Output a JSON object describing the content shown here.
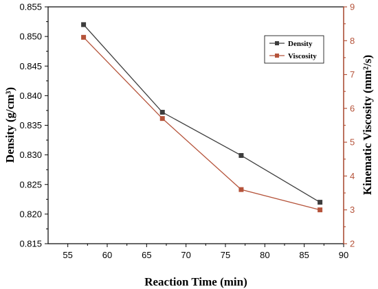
{
  "chart_data": {
    "type": "line",
    "xlabel": "Reaction Time (min)",
    "ylabel_left": "Density (g/cm³)",
    "ylabel_right": "Kinematic Viscosity (mm²/s)",
    "xlim": [
      52.5,
      90
    ],
    "x_ticks": [
      55,
      60,
      65,
      70,
      75,
      80,
      85,
      90
    ],
    "ylim_left": [
      0.815,
      0.855
    ],
    "y_ticks_left": [
      "0.815",
      "0.820",
      "0.825",
      "0.830",
      "0.835",
      "0.840",
      "0.845",
      "0.850",
      "0.855"
    ],
    "ylim_right": [
      2,
      9
    ],
    "y_ticks_right": [
      2,
      3,
      4,
      5,
      6,
      7,
      8,
      9
    ],
    "legend_position": "top-right",
    "grid": false,
    "x": [
      57,
      67,
      77,
      87
    ],
    "series": [
      {
        "name": "Density",
        "axis": "left",
        "color": "#3d3d3d",
        "values": [
          0.852,
          0.8372,
          0.8299,
          0.822
        ]
      },
      {
        "name": "Viscosity",
        "axis": "right",
        "color": "#b5533a",
        "values": [
          8.1,
          5.7,
          3.6,
          3.0
        ]
      }
    ],
    "colors": {
      "left_axis": "#000000",
      "right_axis": "#b5533a"
    }
  }
}
